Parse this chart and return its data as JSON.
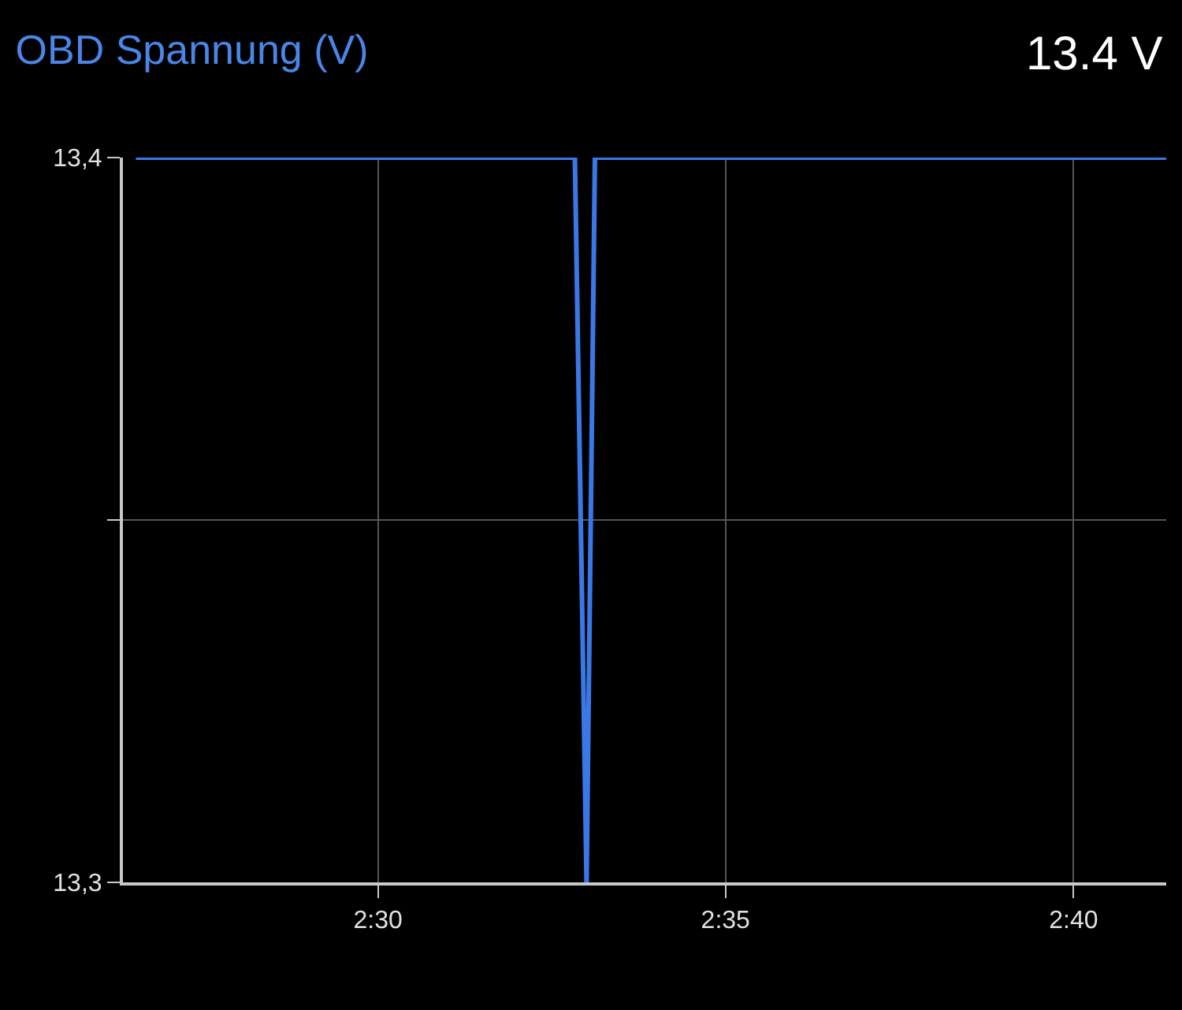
{
  "chart_data": {
    "type": "line",
    "title": "OBD Spannung (V)",
    "annotations": [
      "13.4 V"
    ],
    "x": [
      2.442,
      2.5472,
      2.55,
      2.552,
      2.6889
    ],
    "series": [
      {
        "color": "#3a78e8",
        "values": [
          13.4,
          13.4,
          13.3,
          13.4,
          13.4
        ]
      }
    ],
    "xlim": [
      2.4389,
      2.6889
    ],
    "xticks": [
      {
        "value": 2.5,
        "label": "2:30"
      },
      {
        "value": 2.5833,
        "label": "2:35"
      },
      {
        "value": 2.6667,
        "label": "2:40"
      }
    ],
    "ylim": [
      13.3,
      13.4
    ],
    "yticks": [
      {
        "value": 13.3,
        "label": "13,3"
      },
      {
        "value": 13.35,
        "label": null
      },
      {
        "value": 13.4,
        "label": "13,4"
      }
    ],
    "grid": true,
    "marker": "none",
    "line_style": "solid"
  }
}
